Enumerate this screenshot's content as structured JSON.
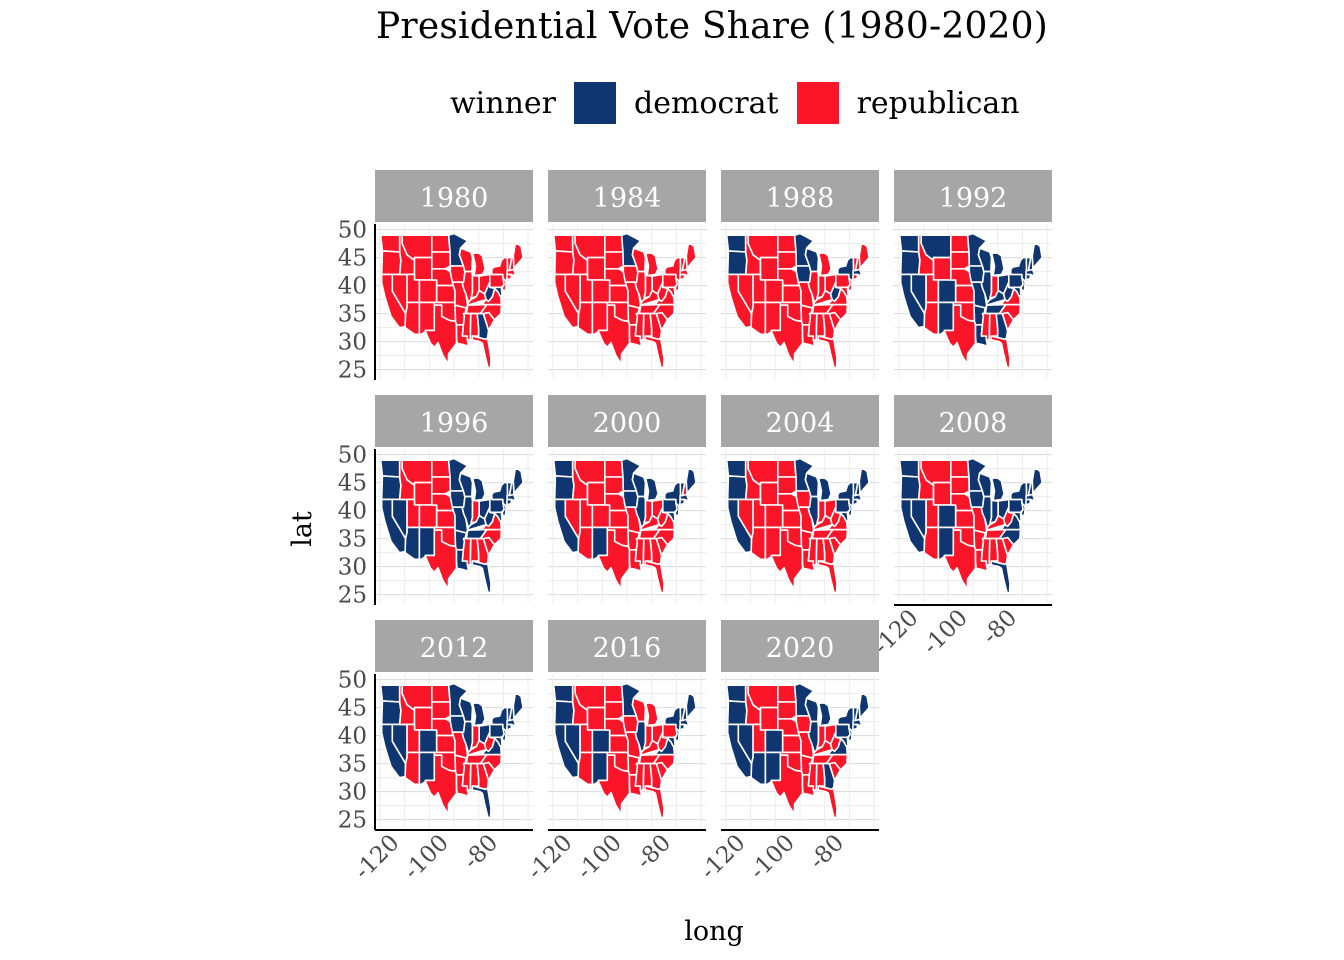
{
  "title": "Presidential Vote Share (1980-2020)",
  "legend": {
    "title": "winner",
    "entries": [
      {
        "label": "democrat",
        "color": "#0f3671"
      },
      {
        "label": "republican",
        "color": "#fa1529"
      }
    ]
  },
  "axes": {
    "x_title": "long",
    "y_title": "lat",
    "x_ticks": [
      -120,
      -100,
      -80
    ],
    "y_ticks": [
      25,
      30,
      35,
      40,
      45,
      50
    ],
    "x_range": [
      -127,
      -63
    ],
    "y_range": [
      23.5,
      51
    ],
    "grid": true
  },
  "panels": [
    {
      "year": "1980",
      "dem": [
        "MN",
        "GA",
        "WV",
        "MD",
        "RI",
        "HI",
        "DC"
      ]
    },
    {
      "year": "1984",
      "dem": [
        "MN",
        "DC"
      ]
    },
    {
      "year": "1988",
      "dem": [
        "WA",
        "OR",
        "MN",
        "WI",
        "IA",
        "WV",
        "NY",
        "MA",
        "RI",
        "HI",
        "DC"
      ]
    },
    {
      "year": "1992",
      "dem": [
        "WA",
        "OR",
        "CA",
        "NV",
        "CO",
        "NM",
        "MT",
        "MN",
        "WI",
        "IA",
        "MO",
        "IL",
        "MI",
        "OH",
        "PA",
        "WV",
        "KY",
        "TN",
        "AR",
        "LA",
        "GA",
        "MD",
        "DE",
        "NJ",
        "NY",
        "CT",
        "RI",
        "MA",
        "VT",
        "NH",
        "ME",
        "HI",
        "DC"
      ]
    },
    {
      "year": "1996",
      "dem": [
        "WA",
        "OR",
        "CA",
        "NV",
        "AZ",
        "NM",
        "MN",
        "WI",
        "IA",
        "MO",
        "IL",
        "MI",
        "OH",
        "PA",
        "WV",
        "KY",
        "TN",
        "AR",
        "LA",
        "FL",
        "MD",
        "DE",
        "NJ",
        "NY",
        "CT",
        "RI",
        "MA",
        "VT",
        "NH",
        "ME",
        "HI",
        "DC"
      ]
    },
    {
      "year": "2000",
      "dem": [
        "WA",
        "OR",
        "CA",
        "NM",
        "MN",
        "WI",
        "IA",
        "IL",
        "MI",
        "PA",
        "MD",
        "DE",
        "NJ",
        "NY",
        "CT",
        "RI",
        "MA",
        "VT",
        "ME",
        "HI",
        "DC"
      ]
    },
    {
      "year": "2004",
      "dem": [
        "WA",
        "OR",
        "CA",
        "MN",
        "WI",
        "IL",
        "MI",
        "PA",
        "MD",
        "DE",
        "NJ",
        "NY",
        "CT",
        "RI",
        "MA",
        "VT",
        "NH",
        "ME",
        "HI",
        "DC"
      ]
    },
    {
      "year": "2008",
      "dem": [
        "WA",
        "OR",
        "CA",
        "NV",
        "CO",
        "NM",
        "MN",
        "WI",
        "IA",
        "IL",
        "MI",
        "IN",
        "OH",
        "PA",
        "VA",
        "NC",
        "FL",
        "MD",
        "DE",
        "NJ",
        "NY",
        "CT",
        "RI",
        "MA",
        "VT",
        "NH",
        "ME",
        "HI",
        "DC"
      ]
    },
    {
      "year": "2012",
      "dem": [
        "WA",
        "OR",
        "CA",
        "NV",
        "CO",
        "NM",
        "MN",
        "WI",
        "IA",
        "IL",
        "MI",
        "OH",
        "PA",
        "VA",
        "FL",
        "MD",
        "DE",
        "NJ",
        "NY",
        "CT",
        "RI",
        "MA",
        "VT",
        "NH",
        "ME",
        "HI",
        "DC"
      ]
    },
    {
      "year": "2016",
      "dem": [
        "WA",
        "OR",
        "CA",
        "NV",
        "CO",
        "NM",
        "MN",
        "IL",
        "VA",
        "MD",
        "DE",
        "NJ",
        "NY",
        "CT",
        "RI",
        "MA",
        "VT",
        "NH",
        "ME",
        "HI",
        "DC"
      ]
    },
    {
      "year": "2020",
      "dem": [
        "WA",
        "OR",
        "CA",
        "NV",
        "AZ",
        "CO",
        "NM",
        "MN",
        "WI",
        "IL",
        "MI",
        "PA",
        "VA",
        "GA",
        "MD",
        "DE",
        "NJ",
        "NY",
        "CT",
        "RI",
        "MA",
        "VT",
        "NH",
        "ME",
        "HI",
        "DC"
      ]
    }
  ]
}
